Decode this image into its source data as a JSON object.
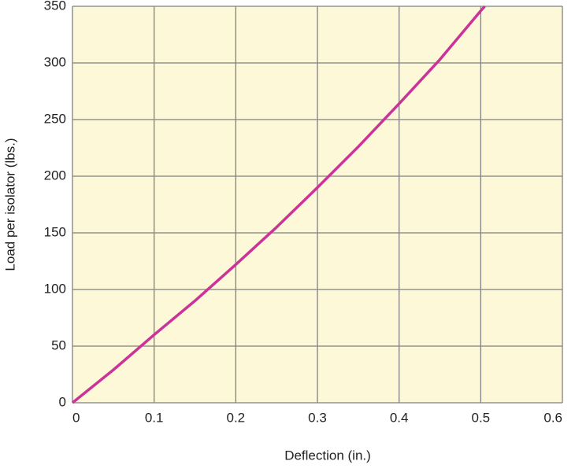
{
  "chart_data": {
    "type": "line",
    "x_label": "Deflection (in.)",
    "y_label": "Load per isolator (lbs.)",
    "x": [
      0,
      0.05,
      0.1,
      0.15,
      0.2,
      0.25,
      0.3,
      0.35,
      0.4,
      0.45,
      0.5,
      0.505
    ],
    "series": [
      {
        "color": "#cc3399",
        "values": [
          0,
          29,
          60,
          90,
          122,
          155,
          190,
          226,
          264,
          303,
          346,
          350
        ]
      }
    ],
    "xlim": [
      0,
      0.6
    ],
    "xticks": [
      0,
      0.1,
      0.2,
      0.3,
      0.4,
      0.5,
      0.6
    ],
    "ylim": [
      0,
      350
    ],
    "yticks": [
      0,
      50,
      100,
      150,
      200,
      250,
      300,
      350
    ],
    "grid": true,
    "background": "#fcf8d8"
  }
}
